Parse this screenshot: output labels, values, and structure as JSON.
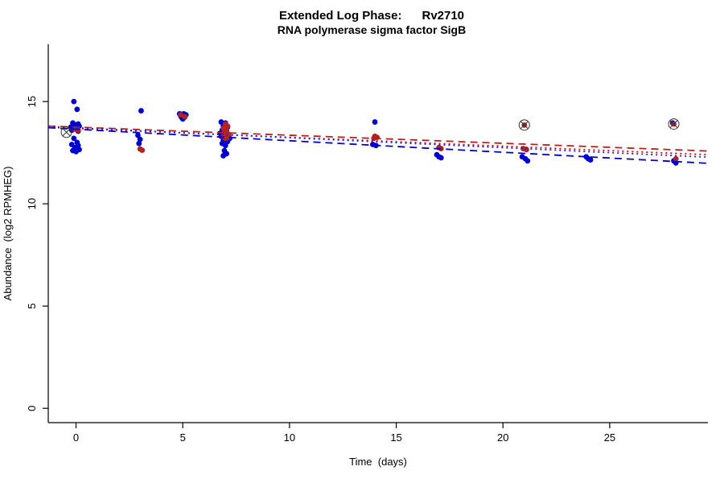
{
  "chart_data": {
    "type": "scatter",
    "title": "Extended Log Phase:      Rv2710",
    "subtitle": "RNA polymerase sigma factor SigB",
    "xlabel": "Time  (days)",
    "ylabel": "Abundance  (log2 RPMHEG)",
    "xlim": [
      -1.3,
      29.6
    ],
    "ylim": [
      -0.7,
      17.8
    ],
    "xticks": [
      0,
      5,
      10,
      15,
      20,
      25
    ],
    "yticks": [
      0,
      5,
      10,
      15
    ],
    "grid": false,
    "colors": {
      "blue": "#0000CD",
      "red": "#B22222",
      "axis": "#000000",
      "outlier_ring": "#333333"
    },
    "series": [
      {
        "name": "blue-points",
        "color": "#0000CD",
        "points": [
          [
            -0.1,
            15.0
          ],
          [
            0.05,
            14.62
          ],
          [
            -0.15,
            13.95
          ],
          [
            0.1,
            13.9
          ],
          [
            -0.05,
            13.85
          ],
          [
            0.15,
            13.8
          ],
          [
            -0.25,
            13.75
          ],
          [
            0.0,
            13.7
          ],
          [
            -0.2,
            13.6
          ],
          [
            0.1,
            13.55
          ],
          [
            -0.1,
            13.2
          ],
          [
            0.05,
            13.0
          ],
          [
            -0.2,
            12.9
          ],
          [
            0.1,
            12.85
          ],
          [
            -0.05,
            12.75
          ],
          [
            0.15,
            12.65
          ],
          [
            -0.15,
            12.6
          ],
          [
            0.0,
            12.55
          ],
          [
            3.05,
            14.55
          ],
          [
            2.9,
            13.35
          ],
          [
            3.0,
            13.15
          ],
          [
            2.95,
            12.95
          ],
          [
            4.85,
            14.4
          ],
          [
            4.95,
            14.38
          ],
          [
            5.05,
            14.4
          ],
          [
            5.15,
            14.35
          ],
          [
            4.9,
            14.3
          ],
          [
            5.0,
            14.32
          ],
          [
            5.1,
            14.28
          ],
          [
            4.95,
            14.22
          ],
          [
            5.05,
            14.2
          ],
          [
            5.0,
            14.15
          ],
          [
            6.8,
            14.0
          ],
          [
            7.0,
            13.95
          ],
          [
            6.9,
            13.8
          ],
          [
            7.1,
            13.75
          ],
          [
            6.85,
            13.6
          ],
          [
            7.05,
            13.55
          ],
          [
            6.75,
            13.45
          ],
          [
            6.95,
            13.4
          ],
          [
            7.15,
            13.35
          ],
          [
            6.8,
            13.3
          ],
          [
            7.0,
            13.25
          ],
          [
            7.2,
            13.2
          ],
          [
            6.9,
            13.1
          ],
          [
            7.1,
            13.05
          ],
          [
            6.85,
            12.95
          ],
          [
            7.0,
            12.85
          ],
          [
            6.95,
            12.6
          ],
          [
            7.05,
            12.45
          ],
          [
            6.9,
            12.35
          ],
          [
            14.0,
            14.0
          ],
          [
            13.9,
            12.9
          ],
          [
            14.05,
            12.85
          ],
          [
            16.9,
            12.4
          ],
          [
            17.0,
            12.3
          ],
          [
            17.1,
            12.25
          ],
          [
            20.9,
            12.3
          ],
          [
            21.05,
            12.2
          ],
          [
            21.15,
            12.1
          ],
          [
            23.9,
            12.3
          ],
          [
            24.0,
            12.2
          ],
          [
            24.1,
            12.15
          ],
          [
            27.95,
            13.95
          ],
          [
            28.0,
            12.1
          ],
          [
            28.1,
            12.0
          ]
        ]
      },
      {
        "name": "red-points",
        "color": "#B22222",
        "points": [
          [
            -0.05,
            13.65
          ],
          [
            0.1,
            13.6
          ],
          [
            3.0,
            12.68
          ],
          [
            3.1,
            12.62
          ],
          [
            4.9,
            14.35
          ],
          [
            5.1,
            14.25
          ],
          [
            7.0,
            13.9
          ],
          [
            7.1,
            13.8
          ],
          [
            6.9,
            13.7
          ],
          [
            7.05,
            13.6
          ],
          [
            6.95,
            13.5
          ],
          [
            7.15,
            13.4
          ],
          [
            7.0,
            13.35
          ],
          [
            6.9,
            13.3
          ],
          [
            7.1,
            13.25
          ],
          [
            7.0,
            13.2
          ],
          [
            14.0,
            13.3
          ],
          [
            14.1,
            13.25
          ],
          [
            13.95,
            13.2
          ],
          [
            17.0,
            12.75
          ],
          [
            17.1,
            12.7
          ],
          [
            21.0,
            13.85
          ],
          [
            20.95,
            12.7
          ],
          [
            21.1,
            12.65
          ],
          [
            28.0,
            13.9
          ],
          [
            28.1,
            12.2
          ]
        ]
      }
    ],
    "outliers": {
      "symbol": "circle-x",
      "points": [
        [
          -0.45,
          13.5
        ],
        [
          21.0,
          13.85
        ],
        [
          28.0,
          13.9
        ]
      ]
    },
    "trend_lines": [
      {
        "name": "red-dashed-fit",
        "color": "#B22222",
        "style": "dashed",
        "dash": "9 6",
        "x": [
          -1.3,
          29.6
        ],
        "y": [
          13.8,
          12.58
        ]
      },
      {
        "name": "red-dotted-fit",
        "color": "#CC0000",
        "style": "dotted",
        "dash": "2 4",
        "x": [
          -1.3,
          29.6
        ],
        "y": [
          13.74,
          12.4
        ]
      },
      {
        "name": "blue-dashed-fit",
        "color": "#0000CD",
        "style": "dashed",
        "dash": "9 6",
        "x": [
          -1.3,
          29.6
        ],
        "y": [
          13.72,
          11.98
        ]
      },
      {
        "name": "blue-dotted-fit",
        "color": "#2222E0",
        "style": "dotted",
        "dash": "2 4",
        "x": [
          -1.3,
          29.6
        ],
        "y": [
          13.78,
          12.28
        ]
      }
    ],
    "legend": null
  }
}
